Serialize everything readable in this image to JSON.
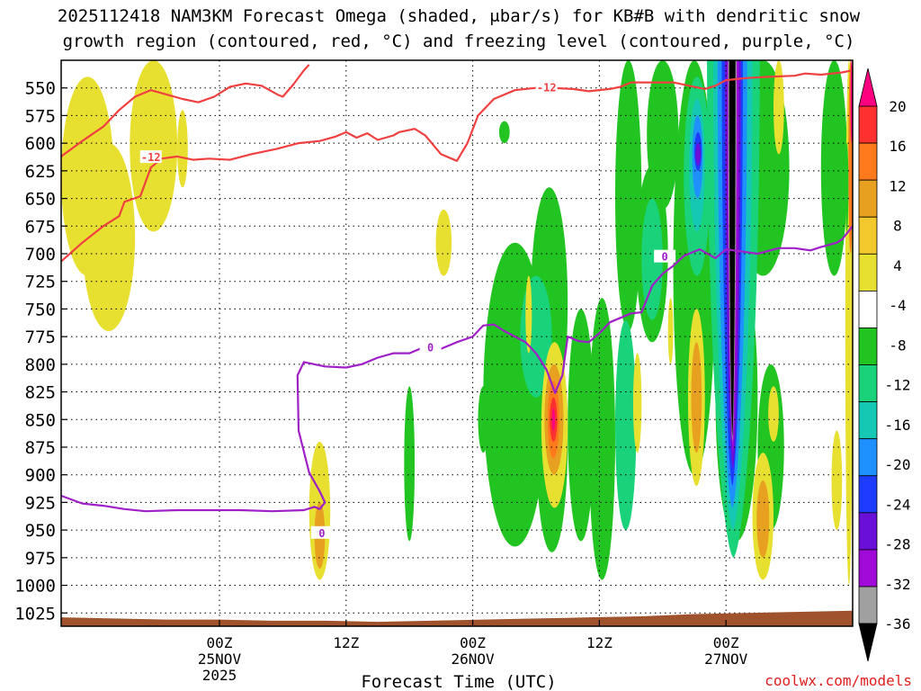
{
  "chart_data": {
    "type": "heatmap",
    "title_line1": "2025112418 NAM3KM Forecast Omega (shaded, μbar/s) for KB#B with dendritic snow",
    "title_line2": "growth region (contoured, red, °C) and freezing level (contoured, purple, °C)",
    "xlabel": "Forecast Time (UTC)",
    "watermark": "coolwx.com/models",
    "y_axis": {
      "unit": "hPa",
      "range": [
        1037,
        525
      ],
      "ticks": [
        550,
        575,
        600,
        625,
        650,
        675,
        700,
        725,
        750,
        775,
        800,
        825,
        850,
        875,
        900,
        925,
        950,
        975,
        1000,
        1025
      ]
    },
    "x_axis": {
      "range_hours": [
        -15,
        60
      ],
      "ticks": [
        {
          "hour": 0,
          "lines": [
            "00Z",
            "25NOV",
            "2025"
          ]
        },
        {
          "hour": 12,
          "lines": [
            "12Z"
          ]
        },
        {
          "hour": 24,
          "lines": [
            "00Z",
            "26NOV"
          ]
        },
        {
          "hour": 36,
          "lines": [
            "12Z"
          ]
        },
        {
          "hour": 48,
          "lines": [
            "00Z",
            "27NOV"
          ]
        }
      ]
    },
    "colorbar": {
      "levels": [
        20,
        16,
        12,
        8,
        4,
        -4,
        -8,
        -12,
        -16,
        -20,
        -24,
        -28,
        -32,
        -36
      ],
      "colors": [
        "#ff0080",
        "#ff3030",
        "#ff7a1c",
        "#e8a020",
        "#f2c82c",
        "#e8e030",
        "#ffffff",
        "#22c422",
        "#19d27a",
        "#14c8b4",
        "#1e90ff",
        "#1e3cff",
        "#6a0fd8",
        "#a00ad8",
        "#a0a0a0",
        "#000000"
      ]
    },
    "dgz_contours": [
      {
        "label": "-12",
        "value": -12,
        "color": "#f04040",
        "points": [
          [
            -15,
            612
          ],
          [
            -13,
            598
          ],
          [
            -11,
            585
          ],
          [
            -9.5,
            570
          ],
          [
            -8,
            558
          ],
          [
            -6.5,
            552
          ],
          [
            -5,
            556
          ],
          [
            -3.5,
            560
          ],
          [
            -2,
            563
          ],
          [
            -0.5,
            558
          ],
          [
            1,
            549
          ],
          [
            2.5,
            546
          ],
          [
            4,
            548
          ],
          [
            5.5,
            556
          ],
          [
            6,
            558
          ],
          [
            7,
            547
          ],
          [
            8,
            534
          ],
          [
            8.5,
            529
          ]
        ]
      },
      {
        "label": "-12",
        "value": -12,
        "color": "#f04040",
        "points": [
          [
            -15,
            707
          ],
          [
            -13,
            690
          ],
          [
            -11,
            675
          ],
          [
            -9.5,
            666
          ],
          [
            -9,
            653
          ],
          [
            -7.5,
            648
          ],
          [
            -6.5,
            622
          ],
          [
            -5.5,
            614
          ],
          [
            -4,
            612
          ],
          [
            -2.5,
            615
          ],
          [
            -1,
            614
          ],
          [
            1,
            615
          ],
          [
            3,
            610
          ],
          [
            5.5,
            605
          ],
          [
            7.5,
            600
          ],
          [
            9.5,
            598
          ],
          [
            11,
            594
          ],
          [
            12,
            590
          ],
          [
            13,
            595
          ],
          [
            14,
            591
          ],
          [
            15,
            597
          ],
          [
            16.5,
            593
          ],
          [
            17,
            590
          ],
          [
            18.5,
            587
          ],
          [
            19.5,
            593
          ],
          [
            21,
            610
          ],
          [
            22.5,
            616
          ],
          [
            23.5,
            600
          ],
          [
            24.5,
            575
          ],
          [
            26,
            560
          ],
          [
            27,
            556
          ],
          [
            28,
            552
          ],
          [
            30,
            550
          ],
          [
            31.5,
            550
          ],
          [
            33.5,
            551
          ],
          [
            35,
            553
          ],
          [
            37,
            551
          ],
          [
            38,
            549
          ],
          [
            39,
            545
          ],
          [
            41,
            545
          ],
          [
            43,
            545
          ],
          [
            44.5,
            548
          ],
          [
            46,
            551
          ],
          [
            47,
            548
          ],
          [
            48,
            543
          ],
          [
            49,
            542
          ],
          [
            50,
            541
          ],
          [
            52,
            540
          ],
          [
            54.5,
            539
          ],
          [
            55.5,
            537
          ],
          [
            57,
            538
          ],
          [
            59,
            536
          ],
          [
            60,
            534
          ]
        ]
      }
    ],
    "freezing_contours": [
      {
        "label": "0",
        "value": 0,
        "color": "#a020c8",
        "points": [
          [
            -15,
            919
          ],
          [
            -13,
            926
          ],
          [
            -11,
            928
          ],
          [
            -9,
            931
          ],
          [
            -7,
            933
          ],
          [
            -4,
            932
          ],
          [
            -1,
            932
          ],
          [
            2,
            932
          ],
          [
            5,
            933
          ],
          [
            8,
            932
          ],
          [
            9,
            929
          ],
          [
            9.5,
            931
          ],
          [
            10,
            925
          ],
          [
            9.5,
            915
          ],
          [
            8.5,
            898
          ],
          [
            7.5,
            860
          ],
          [
            7.4,
            810
          ],
          [
            8,
            798
          ],
          [
            10,
            802
          ],
          [
            12,
            803
          ],
          [
            13.5,
            800
          ],
          [
            15,
            794
          ],
          [
            16.5,
            790
          ],
          [
            18,
            790
          ],
          [
            19.5,
            784
          ],
          [
            21,
            786
          ],
          [
            22.5,
            780
          ],
          [
            24,
            775
          ],
          [
            25,
            765
          ],
          [
            26,
            764
          ],
          [
            27,
            770
          ],
          [
            28,
            775
          ],
          [
            29,
            780
          ],
          [
            30,
            790
          ],
          [
            31,
            805
          ],
          [
            31.8,
            826
          ],
          [
            32.5,
            810
          ],
          [
            33,
            775
          ],
          [
            34,
            779
          ],
          [
            35,
            780
          ],
          [
            36,
            772
          ],
          [
            37,
            762
          ],
          [
            39,
            754
          ],
          [
            40,
            753
          ],
          [
            41,
            729
          ],
          [
            42,
            718
          ],
          [
            43,
            711
          ],
          [
            44,
            702
          ],
          [
            45.5,
            696
          ],
          [
            47,
            704
          ],
          [
            48,
            696
          ],
          [
            49.5,
            698
          ],
          [
            51,
            700
          ],
          [
            53,
            695
          ],
          [
            54.5,
            695
          ],
          [
            56,
            697
          ],
          [
            57,
            694
          ],
          [
            58.5,
            690
          ],
          [
            59,
            687
          ],
          [
            60,
            675
          ]
        ]
      }
    ]
  }
}
